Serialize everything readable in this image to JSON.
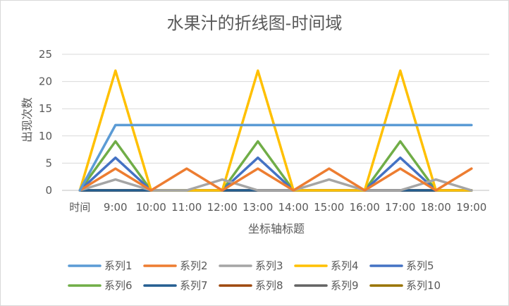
{
  "chart_data": {
    "type": "line",
    "title": "水果汁的折线图-时间域",
    "xlabel": "坐标轴标题",
    "ylabel": "出现次数",
    "categories": [
      "时间",
      "9:00",
      "10:00",
      "11:00",
      "12:00",
      "13:00",
      "14:00",
      "15:00",
      "16:00",
      "17:00",
      "18:00",
      "19:00"
    ],
    "ylim": [
      0,
      25
    ],
    "yticks": [
      0,
      5,
      10,
      15,
      20,
      25
    ],
    "grid": true,
    "legend_position": "bottom",
    "series": [
      {
        "name": "系列1",
        "color": "#5b9bd5",
        "values": [
          0,
          12,
          12,
          12,
          12,
          12,
          12,
          12,
          12,
          12,
          12,
          12
        ]
      },
      {
        "name": "系列2",
        "color": "#ed7d31",
        "values": [
          0,
          4,
          0,
          4,
          0,
          4,
          0,
          4,
          0,
          4,
          0,
          4
        ]
      },
      {
        "name": "系列3",
        "color": "#a5a5a5",
        "values": [
          0,
          2,
          0,
          0,
          2,
          0,
          0,
          2,
          0,
          0,
          2,
          0
        ]
      },
      {
        "name": "系列4",
        "color": "#ffc000",
        "values": [
          0,
          22,
          0,
          0,
          0,
          22,
          0,
          0,
          0,
          22,
          0,
          0
        ]
      },
      {
        "name": "系列5",
        "color": "#4472c4",
        "values": [
          0,
          6,
          0,
          0,
          0,
          6,
          0,
          0,
          0,
          6,
          0,
          0
        ]
      },
      {
        "name": "系列6",
        "color": "#70ad47",
        "values": [
          0,
          9,
          0,
          0,
          0,
          9,
          0,
          0,
          0,
          9,
          0,
          0
        ]
      },
      {
        "name": "系列7",
        "color": "#255e91",
        "values": [
          0,
          0,
          0,
          0,
          0,
          0,
          0,
          0,
          0,
          0,
          0,
          0
        ]
      },
      {
        "name": "系列8",
        "color": "#9e480e",
        "values": [
          0,
          0,
          0,
          0,
          0,
          0,
          0,
          0,
          0,
          0,
          0,
          0
        ]
      },
      {
        "name": "系列9",
        "color": "#636363",
        "values": [
          0,
          0,
          0,
          0,
          0,
          0,
          0,
          0,
          0,
          0,
          0,
          0
        ]
      },
      {
        "name": "系列10",
        "color": "#997300",
        "values": [
          0,
          0,
          0,
          0,
          0,
          0,
          0,
          0,
          0,
          0,
          0,
          0
        ]
      }
    ]
  }
}
